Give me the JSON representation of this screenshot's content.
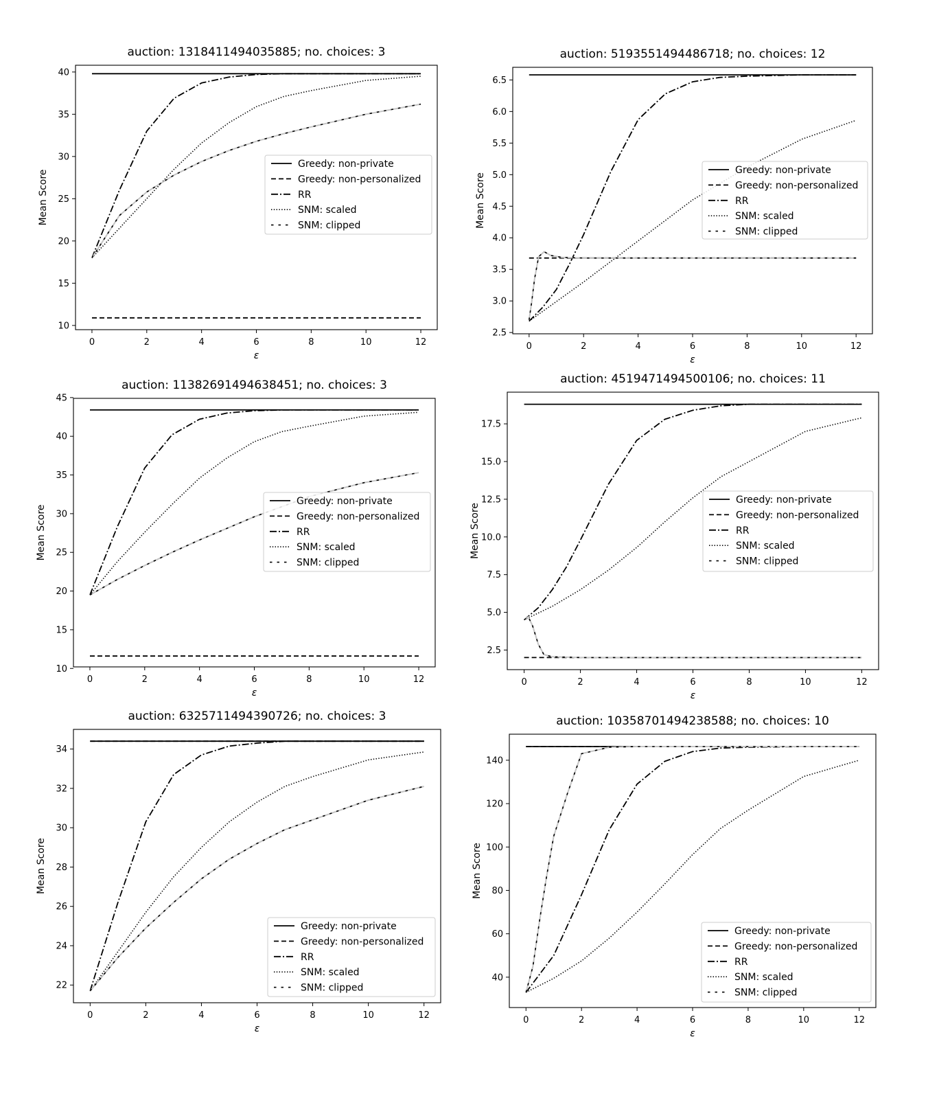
{
  "legend_labels": [
    "Greedy: non-private",
    "Greedy: non-personalized",
    "RR",
    "SNM: scaled",
    "SNM: clipped"
  ],
  "chart_data": [
    {
      "type": "line",
      "title": "auction: 1318411494035885; no. choices: 3",
      "xlabel": "ε",
      "ylabel": "Mean Score",
      "xlim": [
        -0.6,
        12.6
      ],
      "ylim": [
        9.5,
        40.8
      ],
      "xticks": [
        0,
        2,
        4,
        6,
        8,
        10,
        12
      ],
      "xtick_labels": [
        "0",
        "2",
        "4",
        "6",
        "8",
        "10",
        "12"
      ],
      "yticks": [
        10,
        15,
        20,
        25,
        30,
        35,
        40
      ],
      "ytick_labels": [
        "10",
        "15",
        "20",
        "25",
        "30",
        "35",
        "40"
      ],
      "legend_loc": "center right",
      "series": [
        {
          "name": "Greedy: non-private",
          "x": [
            0,
            12
          ],
          "y": [
            39.8,
            39.8
          ]
        },
        {
          "name": "Greedy: non-personalized",
          "x": [
            0,
            12
          ],
          "y": [
            10.9,
            10.9
          ]
        },
        {
          "name": "RR",
          "x": [
            0,
            1,
            2,
            3,
            4,
            5,
            6,
            7,
            8,
            10,
            12
          ],
          "y": [
            18,
            26,
            33,
            36.9,
            38.7,
            39.4,
            39.7,
            39.8,
            39.8,
            39.8,
            39.8
          ]
        },
        {
          "name": "SNM: scaled",
          "x": [
            0,
            1,
            2,
            3,
            4,
            5,
            6,
            7,
            8,
            10,
            12
          ],
          "y": [
            18,
            21.5,
            25,
            28.5,
            31.6,
            34,
            35.9,
            37.1,
            37.8,
            39,
            39.5
          ]
        },
        {
          "name": "SNM: clipped",
          "x": [
            0,
            1,
            2,
            3,
            4,
            5,
            6,
            7,
            8,
            10,
            12
          ],
          "y": [
            18,
            23,
            25.8,
            27.8,
            29.4,
            30.7,
            31.8,
            32.7,
            33.5,
            35,
            36.2
          ]
        }
      ]
    },
    {
      "type": "line",
      "title": "auction: 5193551494486718; no. choices: 12",
      "xlabel": "ε",
      "ylabel": "Mean Score",
      "xlim": [
        -0.6,
        12.6
      ],
      "ylim": [
        2.48,
        6.7
      ],
      "xticks": [
        0,
        2,
        4,
        6,
        8,
        10,
        12
      ],
      "xtick_labels": [
        "0",
        "2",
        "4",
        "6",
        "8",
        "10",
        "12"
      ],
      "yticks": [
        2.5,
        3.0,
        3.5,
        4.0,
        4.5,
        5.0,
        5.5,
        6.0,
        6.5
      ],
      "ytick_labels": [
        "2.5",
        "3.0",
        "3.5",
        "4.0",
        "4.5",
        "5.0",
        "5.5",
        "6.0",
        "6.5"
      ],
      "legend_loc": "center right",
      "series": [
        {
          "name": "Greedy: non-private",
          "x": [
            0,
            12
          ],
          "y": [
            6.58,
            6.58
          ]
        },
        {
          "name": "Greedy: non-personalized",
          "x": [
            0,
            12
          ],
          "y": [
            3.68,
            3.68
          ]
        },
        {
          "name": "RR",
          "x": [
            0,
            0.5,
            1,
            1.5,
            2,
            3,
            4,
            5,
            6,
            7,
            8,
            10,
            12
          ],
          "y": [
            2.68,
            2.9,
            3.18,
            3.6,
            4.05,
            5.05,
            5.87,
            6.28,
            6.47,
            6.54,
            6.56,
            6.58,
            6.58
          ]
        },
        {
          "name": "SNM: scaled",
          "x": [
            0,
            2,
            4,
            6,
            8,
            10,
            12
          ],
          "y": [
            2.68,
            3.3,
            3.95,
            4.6,
            5.12,
            5.56,
            5.86
          ]
        },
        {
          "name": "SNM: clipped",
          "x": [
            0,
            0.1,
            0.2,
            0.35,
            0.55,
            0.8,
            1.2,
            2,
            4,
            6,
            8,
            10,
            12
          ],
          "y": [
            2.7,
            3.0,
            3.35,
            3.7,
            3.78,
            3.72,
            3.69,
            3.68,
            3.68,
            3.68,
            3.68,
            3.68,
            3.68
          ]
        }
      ]
    },
    {
      "type": "line",
      "title": "auction: 11382691494638451; no. choices: 3",
      "xlabel": "ε",
      "ylabel": "Mean Score",
      "xlim": [
        -0.6,
        12.6
      ],
      "ylim": [
        10.2,
        44.9
      ],
      "xticks": [
        0,
        2,
        4,
        6,
        8,
        10,
        12
      ],
      "xtick_labels": [
        "0",
        "2",
        "4",
        "6",
        "8",
        "10",
        "12"
      ],
      "yticks": [
        10,
        15,
        20,
        25,
        30,
        35,
        40,
        45
      ],
      "ytick_labels": [
        "10",
        "15",
        "20",
        "25",
        "30",
        "35",
        "40",
        "45"
      ],
      "legend_loc": "center right",
      "series": [
        {
          "name": "Greedy: non-private",
          "x": [
            0,
            12
          ],
          "y": [
            43.4,
            43.4
          ]
        },
        {
          "name": "Greedy: non-personalized",
          "x": [
            0,
            12
          ],
          "y": [
            11.6,
            11.6
          ]
        },
        {
          "name": "RR",
          "x": [
            0,
            1,
            2,
            3,
            4,
            5,
            6,
            7,
            8,
            10,
            12
          ],
          "y": [
            19.5,
            28.3,
            35.9,
            40.2,
            42.2,
            43,
            43.3,
            43.4,
            43.4,
            43.4,
            43.4
          ]
        },
        {
          "name": "SNM: scaled",
          "x": [
            0,
            1,
            2,
            3,
            4,
            5,
            6,
            7,
            8,
            10,
            12
          ],
          "y": [
            19.5,
            23.8,
            27.6,
            31.2,
            34.6,
            37.2,
            39.3,
            40.6,
            41.3,
            42.6,
            43.1
          ]
        },
        {
          "name": "SNM: clipped",
          "x": [
            0,
            1,
            2,
            3,
            4,
            5,
            6,
            7,
            8,
            10,
            12
          ],
          "y": [
            19.5,
            21.5,
            23.3,
            25,
            26.6,
            28.1,
            29.6,
            30.9,
            32.2,
            34,
            35.3
          ]
        }
      ]
    },
    {
      "type": "line",
      "title": "auction: 4519471494500106; no. choices: 11",
      "xlabel": "ε",
      "ylabel": "Mean Score",
      "xlim": [
        -0.6,
        12.6
      ],
      "ylim": [
        1.2,
        19.6
      ],
      "xticks": [
        0,
        2,
        4,
        6,
        8,
        10,
        12
      ],
      "xtick_labels": [
        "0",
        "2",
        "4",
        "6",
        "8",
        "10",
        "12"
      ],
      "yticks": [
        2.5,
        5.0,
        7.5,
        10.0,
        12.5,
        15.0,
        17.5
      ],
      "ytick_labels": [
        "2.5",
        "5.0",
        "7.5",
        "10.0",
        "12.5",
        "15.0",
        "17.5"
      ],
      "legend_loc": "center right",
      "series": [
        {
          "name": "Greedy: non-private",
          "x": [
            0,
            12
          ],
          "y": [
            18.8,
            18.8
          ]
        },
        {
          "name": "Greedy: non-personalized",
          "x": [
            0,
            12
          ],
          "y": [
            2.0,
            2.0
          ]
        },
        {
          "name": "RR",
          "x": [
            0,
            0.5,
            1,
            1.5,
            2,
            3,
            4,
            5,
            6,
            7,
            8,
            10,
            12
          ],
          "y": [
            4.5,
            5.3,
            6.5,
            8.0,
            9.8,
            13.5,
            16.4,
            17.8,
            18.4,
            18.7,
            18.8,
            18.8,
            18.8
          ]
        },
        {
          "name": "SNM: scaled",
          "x": [
            0,
            1,
            2,
            3,
            4,
            5,
            6,
            7,
            8,
            10,
            12
          ],
          "y": [
            4.5,
            5.4,
            6.5,
            7.8,
            9.3,
            11,
            12.6,
            14,
            15,
            17,
            17.9
          ]
        },
        {
          "name": "SNM: clipped",
          "x": [
            0,
            0.15,
            0.3,
            0.5,
            0.7,
            1,
            2,
            4,
            6,
            8,
            10,
            12
          ],
          "y": [
            4.5,
            4.7,
            4.1,
            2.9,
            2.2,
            2.05,
            2.0,
            2.0,
            2.0,
            2.0,
            2.0,
            2.0
          ]
        }
      ]
    },
    {
      "type": "line",
      "title": "auction: 6325711494390726; no. choices: 3",
      "xlabel": "ε",
      "ylabel": "Mean Score",
      "xlim": [
        -0.6,
        12.6
      ],
      "ylim": [
        21.1,
        35.0
      ],
      "xticks": [
        0,
        2,
        4,
        6,
        8,
        10,
        12
      ],
      "xtick_labels": [
        "0",
        "2",
        "4",
        "6",
        "8",
        "10",
        "12"
      ],
      "yticks": [
        22,
        24,
        26,
        28,
        30,
        32,
        34
      ],
      "ytick_labels": [
        "22",
        "24",
        "26",
        "28",
        "30",
        "32",
        "34"
      ],
      "legend_loc": "lower right",
      "series": [
        {
          "name": "Greedy: non-private",
          "x": [
            0,
            12
          ],
          "y": [
            34.4,
            34.4
          ]
        },
        {
          "name": "Greedy: non-personalized",
          "x": [
            0,
            12
          ],
          "y": [
            34.4,
            34.4
          ]
        },
        {
          "name": "RR",
          "x": [
            0,
            1,
            2,
            3,
            4,
            5,
            6,
            7,
            8,
            10,
            12
          ],
          "y": [
            21.7,
            26.2,
            30.3,
            32.7,
            33.7,
            34.15,
            34.3,
            34.4,
            34.4,
            34.4,
            34.4
          ]
        },
        {
          "name": "SNM: scaled",
          "x": [
            0,
            1,
            2,
            3,
            4,
            5,
            6,
            7,
            8,
            10,
            12
          ],
          "y": [
            21.7,
            23.7,
            25.7,
            27.5,
            29,
            30.3,
            31.3,
            32.1,
            32.6,
            33.45,
            33.85
          ]
        },
        {
          "name": "SNM: clipped",
          "x": [
            0,
            1,
            2,
            3,
            4,
            5,
            6,
            7,
            8,
            10,
            12
          ],
          "y": [
            21.7,
            23.4,
            24.9,
            26.2,
            27.4,
            28.4,
            29.2,
            29.9,
            30.4,
            31.4,
            32.1
          ]
        }
      ]
    },
    {
      "type": "line",
      "title": "auction: 10358701494238588; no. choices: 10",
      "xlabel": "ε",
      "ylabel": "Mean Score",
      "xlim": [
        -0.6,
        12.6
      ],
      "ylim": [
        26,
        152
      ],
      "xticks": [
        0,
        2,
        4,
        6,
        8,
        10,
        12
      ],
      "xtick_labels": [
        "0",
        "2",
        "4",
        "6",
        "8",
        "10",
        "12"
      ],
      "yticks": [
        40,
        60,
        80,
        100,
        120,
        140
      ],
      "ytick_labels": [
        "40",
        "60",
        "80",
        "100",
        "120",
        "140"
      ],
      "legend_loc": "lower right",
      "series": [
        {
          "name": "Greedy: non-private",
          "x": [
            0,
            12
          ],
          "y": [
            146.3,
            146.3
          ]
        },
        {
          "name": "Greedy: non-personalized",
          "x": [
            0,
            12
          ],
          "y": [
            146.3,
            146.3
          ]
        },
        {
          "name": "RR",
          "x": [
            0,
            1,
            2,
            3,
            4,
            5,
            6,
            7,
            8,
            10,
            12
          ],
          "y": [
            33,
            50,
            78,
            108,
            129,
            139.5,
            144,
            145.6,
            146,
            146.3,
            146.3
          ]
        },
        {
          "name": "SNM: scaled",
          "x": [
            0,
            1,
            2,
            3,
            4,
            5,
            6,
            7,
            8,
            10,
            12
          ],
          "y": [
            33,
            39.5,
            47.5,
            58,
            70,
            83,
            96.5,
            108.5,
            117,
            132.5,
            140
          ]
        },
        {
          "name": "SNM: clipped",
          "x": [
            0,
            0.25,
            0.5,
            0.75,
            1,
            1.5,
            2,
            2.5,
            3,
            4,
            6,
            8,
            12
          ],
          "y": [
            33,
            45,
            67,
            87,
            105,
            125,
            143,
            144.5,
            146,
            146.3,
            146.3,
            146.3,
            146.3
          ]
        }
      ]
    }
  ]
}
